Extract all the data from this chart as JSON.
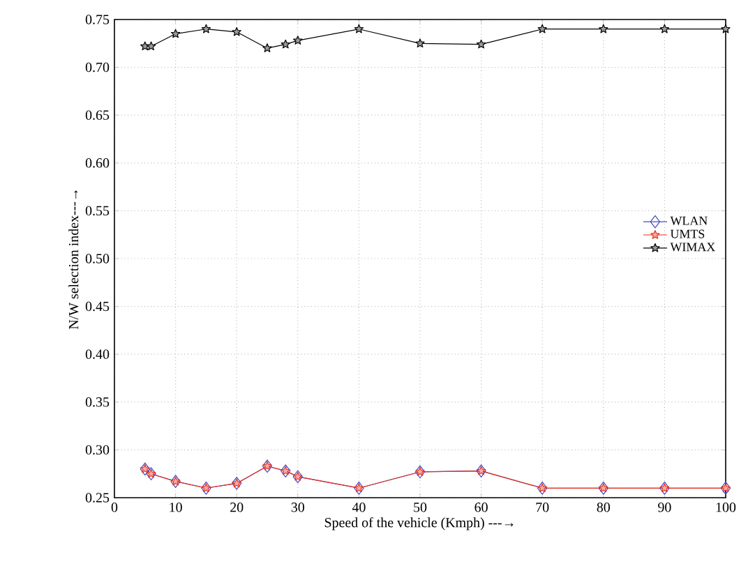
{
  "chart_data": {
    "type": "line",
    "xlabel": "Speed of the vehicle (Kmph) ---→",
    "ylabel": "N/W selection index---→",
    "x": [
      5,
      6,
      10,
      15,
      20,
      25,
      28,
      30,
      40,
      50,
      60,
      70,
      80,
      90,
      100
    ],
    "series": [
      {
        "name": "WLAN",
        "color": "#4848c8",
        "marker": "diamond",
        "values": [
          0.28,
          0.275,
          0.267,
          0.26,
          0.265,
          0.283,
          0.278,
          0.272,
          0.26,
          0.277,
          0.278,
          0.26,
          0.26,
          0.26,
          0.26
        ]
      },
      {
        "name": "UMTS",
        "color": "#e8301c",
        "marker": "star",
        "values": [
          0.28,
          0.275,
          0.267,
          0.26,
          0.265,
          0.283,
          0.278,
          0.272,
          0.26,
          0.277,
          0.278,
          0.26,
          0.26,
          0.26,
          0.26
        ]
      },
      {
        "name": "WIMAX",
        "color": "#000000",
        "marker": "star",
        "values": [
          0.722,
          0.722,
          0.735,
          0.74,
          0.737,
          0.72,
          0.724,
          0.728,
          0.74,
          0.725,
          0.724,
          0.74,
          0.74,
          0.74,
          0.74
        ]
      }
    ],
    "xlim": [
      0,
      100
    ],
    "xticks": [
      0,
      10,
      20,
      30,
      40,
      50,
      60,
      70,
      80,
      90,
      100
    ],
    "ylim": [
      0.25,
      0.75
    ],
    "yticks": [
      {
        "value": 0.25,
        "label": "0.25"
      },
      {
        "value": 0.3,
        "label": "0.30"
      },
      {
        "value": 0.35,
        "label": "0.35"
      },
      {
        "value": 0.4,
        "label": "0.40"
      },
      {
        "value": 0.45,
        "label": "0.45"
      },
      {
        "value": 0.5,
        "label": "0.50"
      },
      {
        "value": 0.55,
        "label": "0.55"
      },
      {
        "value": 0.6,
        "label": "0.60"
      },
      {
        "value": 0.65,
        "label": "0.65"
      },
      {
        "value": 0.7,
        "label": "0.70"
      },
      {
        "value": 0.75,
        "label": "0.75"
      }
    ],
    "grid": true,
    "legend": "right",
    "line_style": "solid"
  }
}
